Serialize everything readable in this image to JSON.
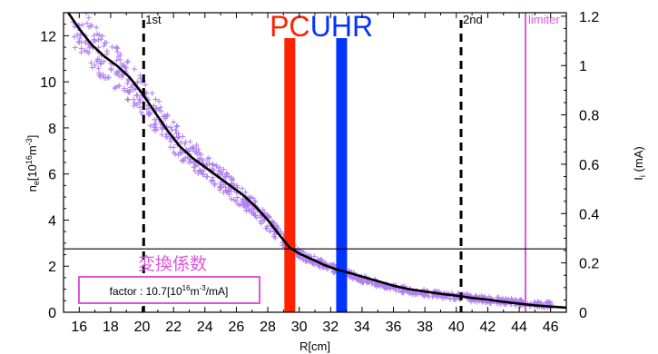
{
  "chart_data": {
    "type": "scatter",
    "xlabel": "R[cm]",
    "ylabel_left": {
      "main": "n",
      "sub": "e",
      "rest": "[10",
      "sup": "16",
      "rest2": "m",
      "sup2": "-3",
      "close": "]"
    },
    "ylabel_right": {
      "main": "I",
      "sub": "i",
      "rest": " (mA)"
    },
    "xlim": [
      15,
      47
    ],
    "ylim_left": [
      0,
      13
    ],
    "ylim_right": [
      0,
      1.2143
    ],
    "x_ticks": [
      16,
      18,
      20,
      22,
      24,
      26,
      28,
      30,
      32,
      34,
      36,
      38,
      40,
      42,
      44,
      46
    ],
    "y_ticks_left": [
      0,
      2,
      4,
      6,
      8,
      10,
      12
    ],
    "y_ticks_right": [
      0,
      0.2,
      0.4,
      0.6,
      0.8,
      1,
      1.2
    ],
    "y_tick_labels_right": [
      "0",
      "0.2",
      "0.4",
      "0.6",
      "0.8",
      "1",
      "1.2"
    ],
    "series": [
      {
        "type": "scatter",
        "color": "#b07ef0",
        "marker": "+",
        "x": [
          15.6,
          16.4,
          17.2,
          18.0,
          18.8,
          19.6,
          20.4,
          21.2,
          22.0,
          22.8,
          23.6,
          24.4,
          25.2,
          26.0,
          26.8,
          27.6,
          28.4,
          29.2,
          30.0,
          30.8,
          31.6,
          32.4,
          33.2,
          34.0,
          35.0,
          36.0,
          37.0,
          38.0,
          39.0,
          40.0,
          41.0,
          42.0,
          43.0,
          44.0,
          45.0,
          46.0
        ],
        "y": [
          12.6,
          12.0,
          11.3,
          10.8,
          10.3,
          9.7,
          9.0,
          8.3,
          7.6,
          7.0,
          6.6,
          6.1,
          5.7,
          5.2,
          4.7,
          4.2,
          3.6,
          3.0,
          2.55,
          2.3,
          2.05,
          1.85,
          1.65,
          1.45,
          1.25,
          1.05,
          0.95,
          0.85,
          0.75,
          0.7,
          0.6,
          0.55,
          0.48,
          0.42,
          0.38,
          0.33
        ]
      },
      {
        "type": "line",
        "color": "#000000",
        "x": [
          15.3,
          16.0,
          16.8,
          17.6,
          18.4,
          19.2,
          20.0,
          20.8,
          21.6,
          22.4,
          23.2,
          24.0,
          24.8,
          25.6,
          26.4,
          27.2,
          28.0,
          28.8,
          29.4,
          30.0,
          30.8,
          31.6,
          32.4,
          33.2,
          34.0,
          35.0,
          36.0,
          37.0,
          38.0,
          39.0,
          40.0,
          41.0,
          42.0,
          43.0,
          44.0,
          45.0,
          46.0,
          47.0
        ],
        "y": [
          13.0,
          12.3,
          11.6,
          11.1,
          10.7,
          10.2,
          9.5,
          8.7,
          7.9,
          7.2,
          6.7,
          6.3,
          5.9,
          5.5,
          5.1,
          4.6,
          4.0,
          3.3,
          2.8,
          2.55,
          2.3,
          2.05,
          1.85,
          1.7,
          1.55,
          1.35,
          1.15,
          1.0,
          0.9,
          0.8,
          0.72,
          0.62,
          0.55,
          0.45,
          0.37,
          0.3,
          0.25,
          0.2
        ]
      }
    ],
    "vlines": [
      {
        "x": 20.1,
        "label": "1st",
        "style": "dashed",
        "color": "#000000"
      },
      {
        "x": 40.3,
        "label": "2nd",
        "style": "dashed",
        "color": "#000000"
      },
      {
        "x": 44.4,
        "label": "limiter",
        "style": "solid",
        "color": "#dd55dd"
      },
      {
        "x": 29.4,
        "label": "PC",
        "style": "band",
        "color": "#ff2200"
      },
      {
        "x": 32.7,
        "label": "UHR",
        "style": "band",
        "color": "#0033ff"
      }
    ],
    "hline": {
      "y": 2.75,
      "color": "#000000"
    },
    "annotation": {
      "title": "変換係数",
      "text": {
        "a": "factor : 10.7[10",
        "sup": "16",
        "b": "m",
        "sup2": "-3",
        "c": "/mA]"
      },
      "color": "#dd55dd"
    }
  }
}
